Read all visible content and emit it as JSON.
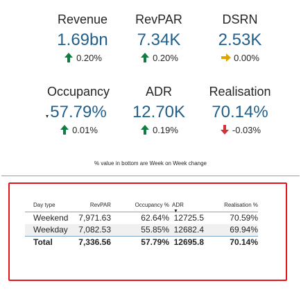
{
  "kpis": [
    {
      "title": "Revenue",
      "value": "1.69bn",
      "change": "0.20%",
      "trend": "up",
      "trend_color": "#107c41",
      "arrow_icon": "arrow-up-icon"
    },
    {
      "title": "RevPAR",
      "value": "7.34K",
      "change": "0.20%",
      "trend": "up",
      "trend_color": "#107c41",
      "arrow_icon": "arrow-up-icon"
    },
    {
      "title": "DSRN",
      "value": "2.53K",
      "change": "0.00%",
      "trend": "flat",
      "trend_color": "#e0a400",
      "arrow_icon": "arrow-right-icon"
    },
    {
      "title": "Occupancy",
      "value": "57.79%",
      "change": "0.01%",
      "trend": "up",
      "trend_color": "#107c41",
      "arrow_icon": "arrow-up-icon"
    },
    {
      "title": "ADR",
      "value": "12.70K",
      "change": "0.19%",
      "trend": "up",
      "trend_color": "#107c41",
      "arrow_icon": "arrow-up-icon"
    },
    {
      "title": "Realisation",
      "value": "70.14%",
      "change": "-0.03%",
      "trend": "down",
      "trend_color": "#d13438",
      "arrow_icon": "arrow-down-icon"
    }
  ],
  "note": "% value in bottom are Week on Week change",
  "table": {
    "columns": [
      "Day type",
      "RevPAR",
      "Occupancy %",
      "ADR",
      "Realisation %"
    ],
    "rows": [
      [
        "Weekend",
        "7,971.63",
        "62.64%",
        "12725.5",
        "70.59%"
      ],
      [
        "Weekday",
        "7,082.53",
        "55.85%",
        "12682.4",
        "69.94%"
      ]
    ],
    "total": [
      "Total",
      "7,336.56",
      "57.79%",
      "12695.8",
      "70.14%"
    ],
    "sort_column": "ADR",
    "sort_direction": "descending"
  },
  "colors": {
    "accent_value": "#1f5f8b",
    "highlight_border": "#e8111a",
    "divider": "#7ea7c7"
  }
}
